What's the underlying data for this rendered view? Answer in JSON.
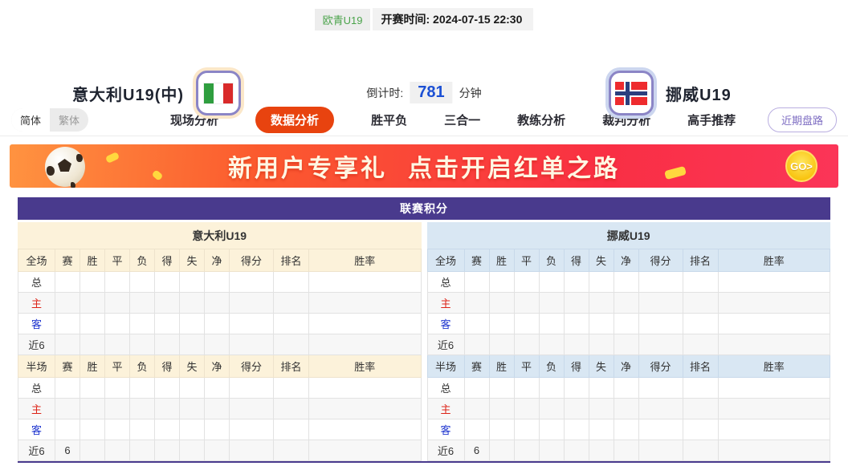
{
  "match_header": {
    "league": "欧青U19",
    "kickoff_label": "开赛时间:",
    "kickoff_time": "2024-07-15 22:30",
    "home_team": "意大利U19(中)",
    "away_team": "挪威U19",
    "countdown_label": "倒计时:",
    "countdown_minutes": "781",
    "countdown_unit": "分钟"
  },
  "nav": {
    "lang_options": [
      "简体",
      "繁体"
    ],
    "tabs": [
      "现场分析",
      "数据分析",
      "胜平负",
      "三合一",
      "教练分析",
      "裁判分析",
      "高手推荐"
    ],
    "active_tab": "数据分析",
    "recent_button": "近期盘路"
  },
  "banner": {
    "title": "新用户专享礼",
    "subtitle": "点击开启红单之路",
    "go_label": "GO>"
  },
  "table": {
    "title": "联赛积分",
    "stat_headers": [
      "赛",
      "胜",
      "平",
      "负",
      "得",
      "失",
      "净",
      "得分",
      "排名",
      "胜率"
    ],
    "full_scope_label": "全场",
    "half_scope_label": "半场",
    "sections": [
      {
        "team": "意大利U19",
        "theme": "home",
        "full_rows": [
          {
            "label": "总",
            "type": "total",
            "values": [
              "",
              "",
              "",
              "",
              "",
              "",
              "",
              "",
              "",
              ""
            ]
          },
          {
            "label": "主",
            "type": "home",
            "values": [
              "",
              "",
              "",
              "",
              "",
              "",
              "",
              "",
              "",
              ""
            ]
          },
          {
            "label": "客",
            "type": "away",
            "values": [
              "",
              "",
              "",
              "",
              "",
              "",
              "",
              "",
              "",
              ""
            ]
          },
          {
            "label": "近6",
            "type": "recent",
            "values": [
              "",
              "",
              "",
              "",
              "",
              "",
              "",
              "",
              "",
              ""
            ]
          }
        ],
        "half_rows": [
          {
            "label": "总",
            "type": "total",
            "values": [
              "",
              "",
              "",
              "",
              "",
              "",
              "",
              "",
              "",
              ""
            ]
          },
          {
            "label": "主",
            "type": "home",
            "values": [
              "",
              "",
              "",
              "",
              "",
              "",
              "",
              "",
              "",
              ""
            ]
          },
          {
            "label": "客",
            "type": "away",
            "values": [
              "",
              "",
              "",
              "",
              "",
              "",
              "",
              "",
              "",
              ""
            ]
          },
          {
            "label": "近6",
            "type": "recent",
            "values": [
              "6",
              "",
              "",
              "",
              "",
              "",
              "",
              "",
              "",
              ""
            ]
          }
        ]
      },
      {
        "team": "挪威U19",
        "theme": "away",
        "full_rows": [
          {
            "label": "总",
            "type": "total",
            "values": [
              "",
              "",
              "",
              "",
              "",
              "",
              "",
              "",
              "",
              ""
            ]
          },
          {
            "label": "主",
            "type": "home",
            "values": [
              "",
              "",
              "",
              "",
              "",
              "",
              "",
              "",
              "",
              ""
            ]
          },
          {
            "label": "客",
            "type": "away",
            "values": [
              "",
              "",
              "",
              "",
              "",
              "",
              "",
              "",
              "",
              ""
            ]
          },
          {
            "label": "近6",
            "type": "recent",
            "values": [
              "",
              "",
              "",
              "",
              "",
              "",
              "",
              "",
              "",
              ""
            ]
          }
        ],
        "half_rows": [
          {
            "label": "总",
            "type": "total",
            "values": [
              "",
              "",
              "",
              "",
              "",
              "",
              "",
              "",
              "",
              ""
            ]
          },
          {
            "label": "主",
            "type": "home",
            "values": [
              "",
              "",
              "",
              "",
              "",
              "",
              "",
              "",
              "",
              ""
            ]
          },
          {
            "label": "客",
            "type": "away",
            "values": [
              "",
              "",
              "",
              "",
              "",
              "",
              "",
              "",
              "",
              ""
            ]
          },
          {
            "label": "近6",
            "type": "recent",
            "values": [
              "6",
              "",
              "",
              "",
              "",
              "",
              "",
              "",
              "",
              ""
            ]
          }
        ]
      }
    ]
  },
  "colors": {
    "accent_red": "#e8430f",
    "header_purple": "#493a8d",
    "home_theme": "#fcf2da",
    "away_theme": "#d9e7f3",
    "countdown_blue": "#1c50d4",
    "league_green": "#4aa34a"
  }
}
